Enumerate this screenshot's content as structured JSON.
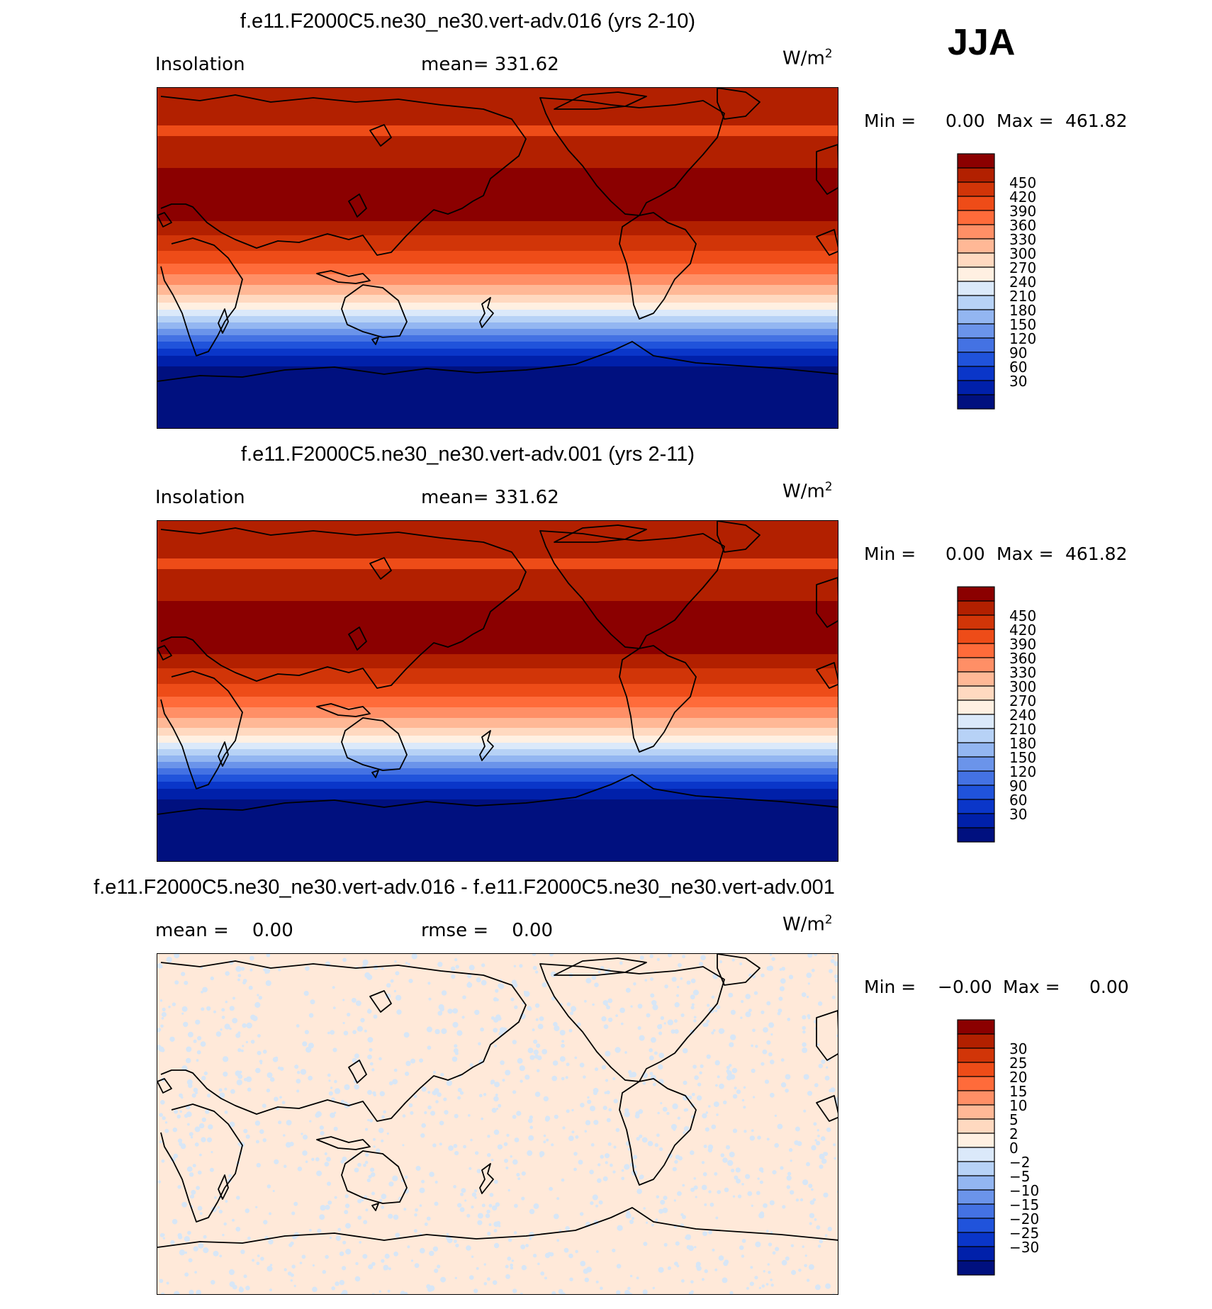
{
  "season_label": "JJA",
  "panels": [
    {
      "title": "f.e11.F2000C5.ne30_ne30.vert-adv.016 (yrs 2-10)",
      "variable": "Insolation",
      "left_stat": "",
      "right_stat": "mean= 331.62",
      "units": "W/m",
      "units_sup": "2",
      "min_label": "Min =",
      "min_value": "0.00",
      "max_label": "Max =",
      "max_value": "461.82",
      "colorbar_labels": [
        "450",
        "420",
        "390",
        "360",
        "330",
        "300",
        "270",
        "240",
        "210",
        "180",
        "150",
        "120",
        "90",
        "60",
        "30"
      ]
    },
    {
      "title": "f.e11.F2000C5.ne30_ne30.vert-adv.001 (yrs 2-11)",
      "variable": "Insolation",
      "left_stat": "",
      "right_stat": "mean= 331.62",
      "units": "W/m",
      "units_sup": "2",
      "min_label": "Min =",
      "min_value": "0.00",
      "max_label": "Max =",
      "max_value": "461.82",
      "colorbar_labels": [
        "450",
        "420",
        "390",
        "360",
        "330",
        "300",
        "270",
        "240",
        "210",
        "180",
        "150",
        "120",
        "90",
        "60",
        "30"
      ]
    },
    {
      "title": "f.e11.F2000C5.ne30_ne30.vert-adv.016 - f.e11.F2000C5.ne30_ne30.vert-adv.001",
      "variable": "",
      "left_stat": "mean =    0.00",
      "right_stat": "rmse =    0.00",
      "units": "W/m",
      "units_sup": "2",
      "min_label": "Min =",
      "min_value": "−0.00",
      "max_label": "Max =",
      "max_value": "0.00",
      "colorbar_labels": [
        "30",
        "25",
        "20",
        "15",
        "10",
        "5",
        "2",
        "0",
        "−2",
        "−5",
        "−10",
        "−15",
        "−20",
        "−25",
        "−30"
      ]
    }
  ],
  "colors": {
    "palette": [
      "#8b0000",
      "#b22000",
      "#d13508",
      "#ee4c18",
      "#ff6b3a",
      "#ff8f66",
      "#ffb896",
      "#ffd9c0",
      "#fff0e2",
      "#dbe9fa",
      "#b7d2f6",
      "#93b6f1",
      "#6b94ea",
      "#4472e3",
      "#2053db",
      "#0a36c9",
      "#0020aa",
      "#00107f"
    ],
    "diff_background": "#ffe9d9",
    "diff_speckle": "#d7e6f6",
    "coast_line": "#000000"
  }
}
